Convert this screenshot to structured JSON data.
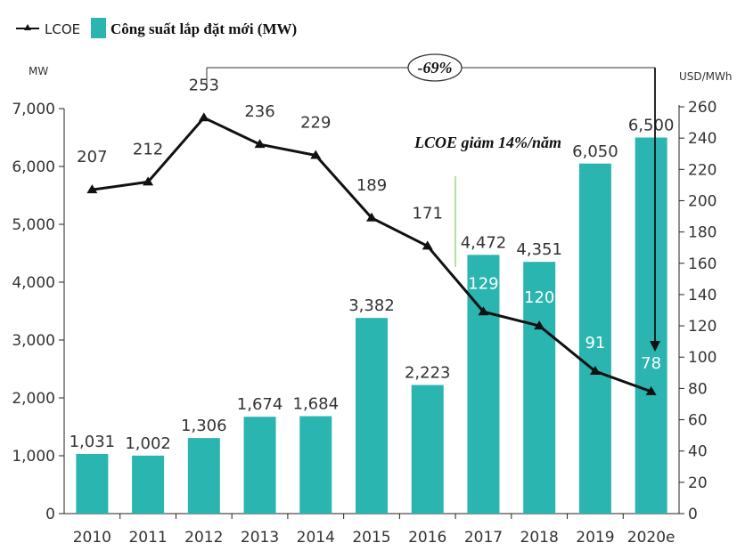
{
  "chart_data": {
    "type": "bar",
    "categories": [
      "2010",
      "2011",
      "2012",
      "2013",
      "2014",
      "2015",
      "2016",
      "2017",
      "2018",
      "2019",
      "2020e"
    ],
    "series": [
      {
        "name": "Công suất lắp đặt mới (MW)",
        "type": "bar",
        "axis": "left",
        "values": [
          1031,
          1002,
          1306,
          1674,
          1684,
          3382,
          2223,
          4472,
          4351,
          6050,
          6500
        ],
        "labels": [
          "1,031",
          "1,002",
          "1,306",
          "1,674",
          "1,684",
          "3,382",
          "2,223",
          "4,472",
          "4,351",
          "6,050",
          "6,500"
        ],
        "color": "#2bb5b0"
      },
      {
        "name": "LCOE",
        "type": "line",
        "axis": "right",
        "values": [
          207,
          212,
          253,
          236,
          229,
          189,
          171,
          129,
          120,
          91,
          78
        ],
        "labels": [
          "207",
          "212",
          "253",
          "236",
          "229",
          "189",
          "171",
          "129",
          "120",
          "91",
          "78"
        ],
        "color": "#111111"
      }
    ],
    "y_left": {
      "unit": "MW",
      "ylim": [
        0,
        7000
      ],
      "ticks": [
        0,
        1000,
        2000,
        3000,
        4000,
        5000,
        6000,
        7000
      ],
      "tick_labels": [
        "0",
        "1,000",
        "2,000",
        "3,000",
        "4,000",
        "5,000",
        "6,000",
        "7,000"
      ]
    },
    "y_right": {
      "unit": "USD/MWh",
      "ylim": [
        0,
        260
      ],
      "ticks": [
        0,
        20,
        40,
        60,
        80,
        100,
        120,
        140,
        160,
        180,
        200,
        220,
        240,
        260
      ],
      "tick_labels": [
        "0",
        "20",
        "40",
        "60",
        "80",
        "100",
        "120",
        "140",
        "160",
        "180",
        "200",
        "220",
        "240",
        "260"
      ]
    },
    "annotations": {
      "change_label": "-69%",
      "trend_text": "LCOE giảm 14%/năm"
    },
    "legend": {
      "position": "top-left",
      "entries": [
        "LCOE",
        "Công suất lắp đặt mới (MW)"
      ]
    },
    "grid": false
  }
}
